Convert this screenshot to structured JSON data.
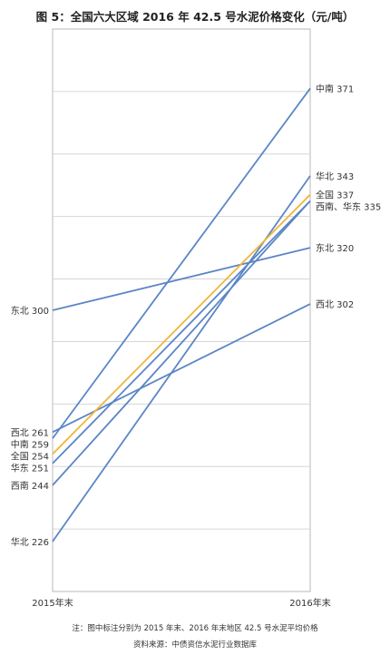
{
  "title": "图 5：全国六大区域 2016 年 42.5 号水泥价格变化（元/吨）",
  "note": "注：图中标注分别为 2015 年末、2016 年末地区 42.5 号水泥平均价格",
  "source": "资料来源：中债资信水泥行业数据库",
  "chart_data": {
    "type": "line",
    "x": [
      "2015年末",
      "2016年末"
    ],
    "ylim": [
      210,
      390
    ],
    "grid": true,
    "series": [
      {
        "name": "中南",
        "values": [
          259,
          371
        ],
        "color": "#5b86c5"
      },
      {
        "name": "华北",
        "values": [
          226,
          343
        ],
        "color": "#5b86c5"
      },
      {
        "name": "全国",
        "values": [
          254,
          337
        ],
        "color": "#f2b53a"
      },
      {
        "name": "西南",
        "values": [
          244,
          335
        ],
        "color": "#5b86c5"
      },
      {
        "name": "华东",
        "values": [
          251,
          335
        ],
        "color": "#5b86c5"
      },
      {
        "name": "东北",
        "values": [
          300,
          320
        ],
        "color": "#5b86c5"
      },
      {
        "name": "西北",
        "values": [
          261,
          302
        ],
        "color": "#5b86c5"
      }
    ],
    "left_labels": [
      {
        "text": "东北 300",
        "value": 300
      },
      {
        "text": "西北 261",
        "value": 261
      },
      {
        "text": "中南 259",
        "value": 259
      },
      {
        "text": "全国 254",
        "value": 254
      },
      {
        "text": "华东 251",
        "value": 251
      },
      {
        "text": "西南 244",
        "value": 244
      },
      {
        "text": "华北 226",
        "value": 226
      }
    ],
    "right_labels": [
      {
        "text": "中南 371",
        "value": 371
      },
      {
        "text": "华北 343",
        "value": 343
      },
      {
        "text": "全国 337",
        "value": 337
      },
      {
        "text": "西南、华东 335",
        "value": 335
      },
      {
        "text": "东北 320",
        "value": 320
      },
      {
        "text": "西北 302",
        "value": 302
      }
    ]
  }
}
